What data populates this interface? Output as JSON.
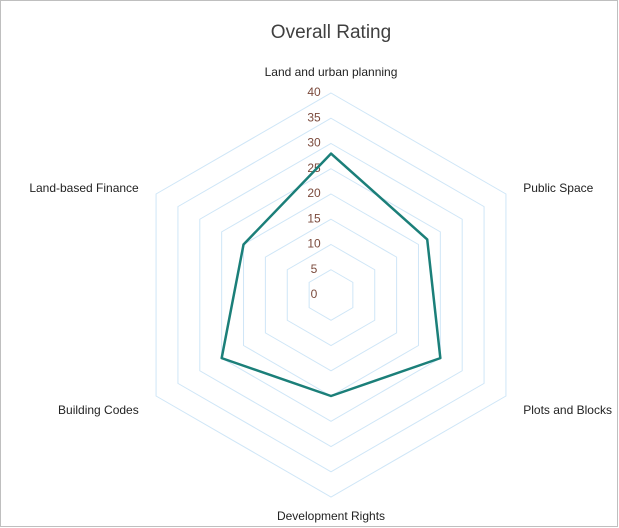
{
  "chart_data": {
    "type": "radar",
    "title": "Overall Rating",
    "categories": [
      "Land and urban planning",
      "Public Space",
      "Plots and Blocks",
      "Development Rights",
      "Building Codes",
      "Land-based Finance"
    ],
    "series": [
      {
        "name": "Overall Rating",
        "color": "#1b7f79",
        "values": [
          28,
          22,
          25,
          20,
          25,
          20
        ]
      }
    ],
    "ylim": [
      0,
      40
    ],
    "yticks": [
      0,
      5,
      10,
      15,
      20,
      25,
      30,
      35,
      40
    ],
    "grid": true,
    "grid_color": "#cfe6f7"
  }
}
